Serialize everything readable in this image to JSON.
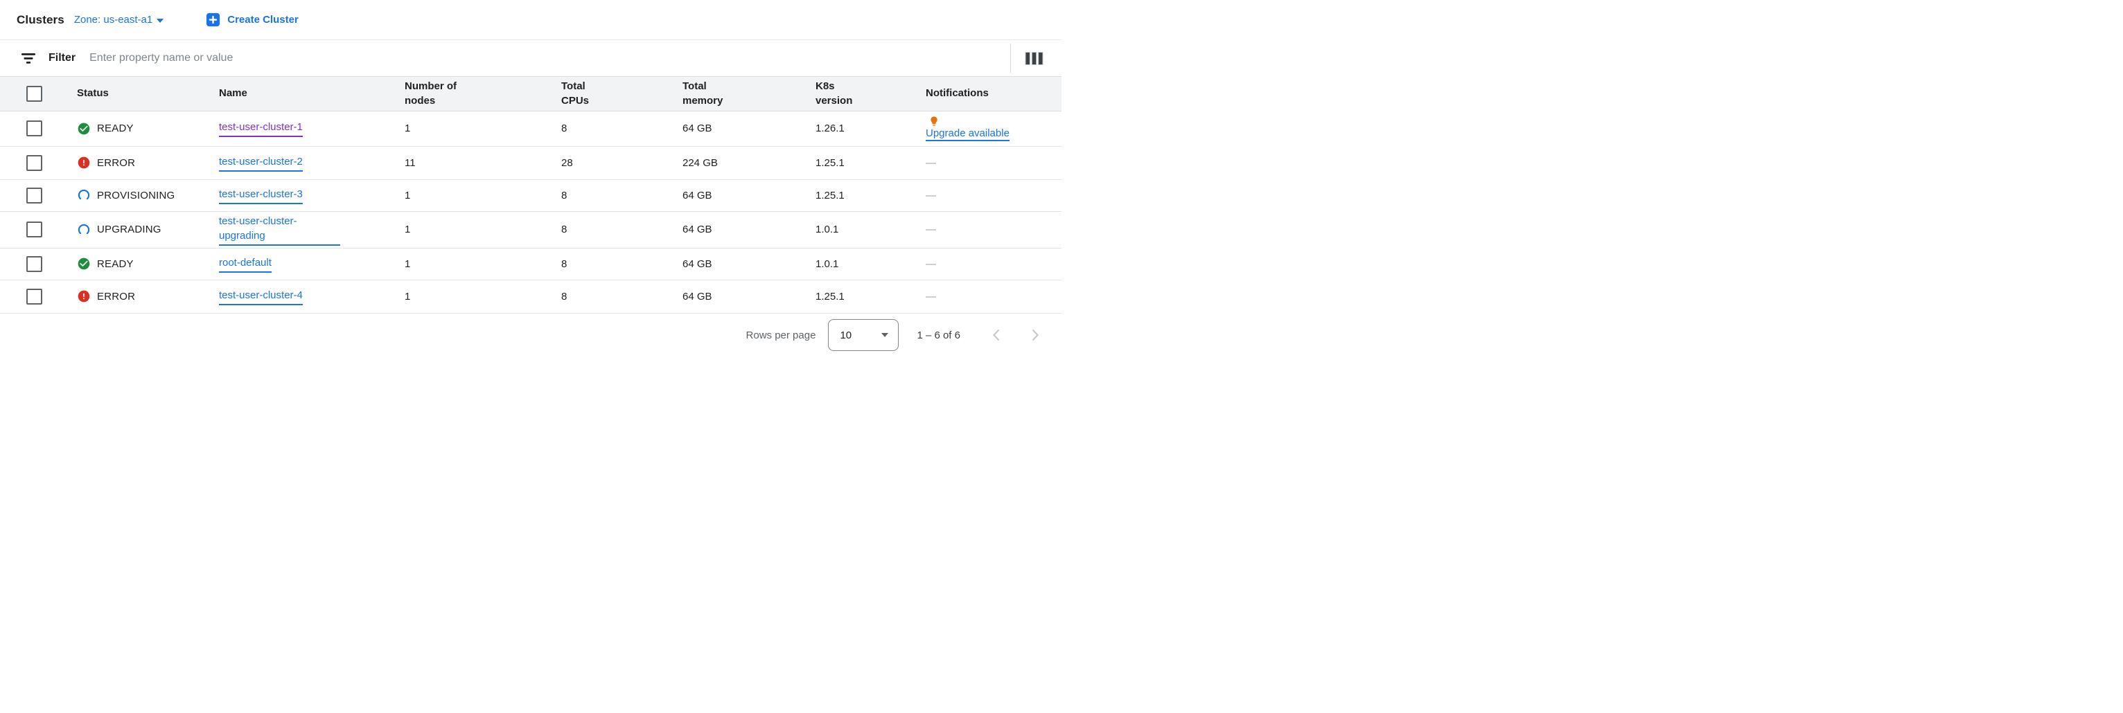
{
  "header": {
    "title": "Clusters",
    "zone_label": "Zone: us-east-a1",
    "create_button_label": "Create Cluster"
  },
  "filter": {
    "label": "Filter",
    "placeholder": "Enter property name or value"
  },
  "table": {
    "columns": [
      "Status",
      "Name",
      "Number of\nnodes",
      "Total\nCPUs",
      "Total\nmemory",
      "K8s\nversion",
      "Notifications"
    ],
    "rows": [
      {
        "status": "READY",
        "status_type": "ready",
        "name": "test-user-cluster-1",
        "name_visited": true,
        "name_wrap": false,
        "nodes": "1",
        "cpus": "8",
        "memory": "64 GB",
        "k8s": "1.26.1",
        "notification": {
          "type": "upgrade",
          "label": "Upgrade available"
        }
      },
      {
        "status": "ERROR",
        "status_type": "error",
        "name": "test-user-cluster-2",
        "name_visited": false,
        "name_wrap": false,
        "nodes": "11",
        "cpus": "28",
        "memory": "224 GB",
        "k8s": "1.25.1",
        "notification": {
          "type": "none",
          "label": "—"
        }
      },
      {
        "status": "PROVISIONING",
        "status_type": "progress",
        "name": "test-user-cluster-3",
        "name_visited": false,
        "name_wrap": false,
        "nodes": "1",
        "cpus": "8",
        "memory": "64 GB",
        "k8s": "1.25.1",
        "notification": {
          "type": "none",
          "label": "—"
        }
      },
      {
        "status": "UPGRADING",
        "status_type": "progress",
        "name": "test-user-cluster-upgrading",
        "name_visited": false,
        "name_wrap": true,
        "nodes": "1",
        "cpus": "8",
        "memory": "64 GB",
        "k8s": "1.0.1",
        "notification": {
          "type": "none",
          "label": "—"
        }
      },
      {
        "status": "READY",
        "status_type": "ready",
        "name": "root-default",
        "name_visited": false,
        "name_wrap": false,
        "nodes": "1",
        "cpus": "8",
        "memory": "64 GB",
        "k8s": "1.0.1",
        "notification": {
          "type": "none",
          "label": "—"
        }
      },
      {
        "status": "ERROR",
        "status_type": "error",
        "name": "test-user-cluster-4",
        "name_visited": false,
        "name_wrap": false,
        "nodes": "1",
        "cpus": "8",
        "memory": "64 GB",
        "k8s": "1.25.1",
        "notification": {
          "type": "none",
          "label": "—"
        }
      }
    ]
  },
  "pagination": {
    "rows_per_page_label": "Rows per page",
    "rows_per_page_value": "10",
    "range_label": "1 – 6 of 6"
  },
  "icons": {
    "create": "plus-icon",
    "zone": "caret-down-icon",
    "filter": "filter-icon",
    "columns": "column-selector-icon",
    "ready": "check-circle-icon",
    "error": "error-circle-icon",
    "progress": "spinner-icon",
    "notification": "lightbulb-icon"
  },
  "colors": {
    "accent_blue": "#1a73e8",
    "link_visited_purple": "#8430ce",
    "status_ready_green": "#1e8e3e",
    "status_error_red": "#d93025",
    "bulb_orange": "#e8710a",
    "header_row_bg": "#f1f3f4"
  }
}
